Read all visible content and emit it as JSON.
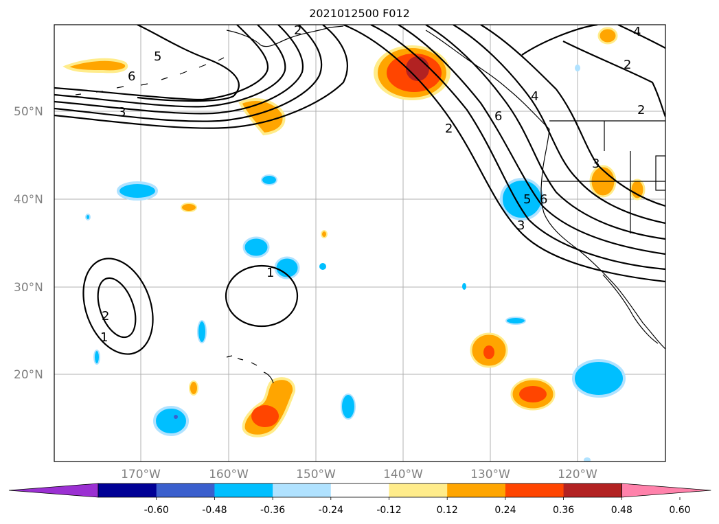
{
  "title": "2021012500 F012",
  "latitude_labels": [
    "50°N",
    "40°N",
    "30°N",
    "20°N"
  ],
  "longitude_labels": [
    "170°W",
    "160°W",
    "150°W",
    "140°W",
    "130°W",
    "120°W"
  ],
  "colorbar": {
    "tick_labels": [
      "-0.60",
      "-0.48",
      "-0.36",
      "-0.24",
      "-0.12",
      "0.12",
      "0.24",
      "0.36",
      "0.48",
      "0.60"
    ],
    "colors": [
      "#9b30d2",
      "#000095",
      "#3a5fcd",
      "#00bfff",
      "#b0e2ff",
      "#ffffff",
      "#ffec8b",
      "#ffa500",
      "#ff4500",
      "#b22222",
      "#ff82ab"
    ],
    "extend": "both"
  },
  "contour_labels": [
    "5",
    "6",
    "3",
    "1",
    "2",
    "2",
    "1",
    "2",
    "6",
    "4",
    "3",
    "5",
    "6",
    "3",
    "2",
    "2",
    "4"
  ],
  "colors": {
    "contour": "#000000",
    "grid": "#b0b0b0",
    "coastline": "#000000"
  }
}
